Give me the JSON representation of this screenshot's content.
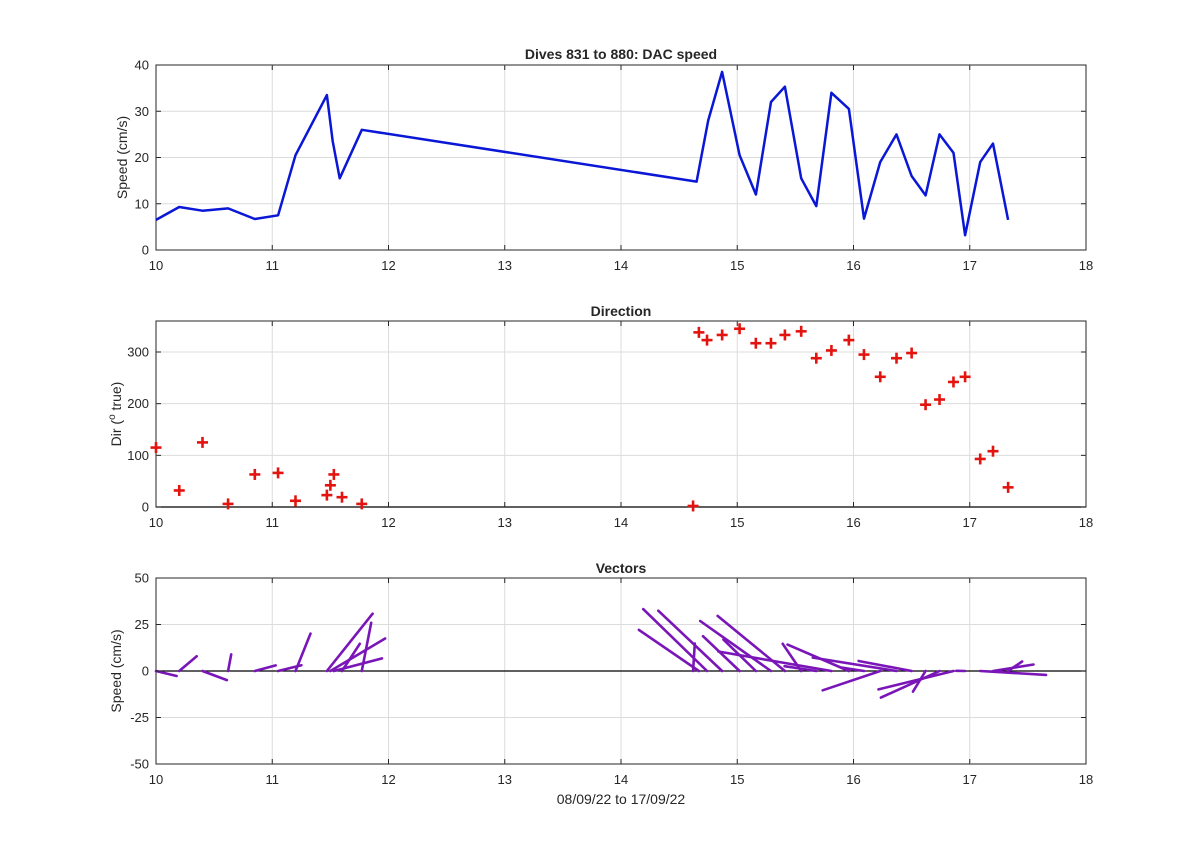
{
  "figure": {
    "xlabel": "08/09/22 to 17/09/22"
  },
  "colors": {
    "speed_line": "#0a17d6",
    "direction_marker": "#e3140f",
    "vector_line": "#7a16b8",
    "grid": "#dcdcdc",
    "axis": "#262626"
  },
  "chart_data": [
    {
      "id": "speed",
      "type": "line",
      "title": "Dives 831 to 880: DAC speed",
      "xlabel": "",
      "ylabel": "Speed (cm/s)",
      "xlim": [
        10,
        18
      ],
      "ylim": [
        0,
        40
      ],
      "xticks": [
        10,
        11,
        12,
        13,
        14,
        15,
        16,
        17,
        18
      ],
      "yticks": [
        0,
        10,
        20,
        30,
        40
      ],
      "grid": true,
      "x": [
        10.0,
        10.2,
        10.4,
        10.62,
        10.85,
        11.05,
        11.2,
        11.47,
        11.52,
        11.58,
        11.77,
        14.65,
        14.75,
        14.87,
        15.02,
        15.16,
        15.29,
        15.41,
        15.55,
        15.68,
        15.81,
        15.96,
        16.09,
        16.23,
        16.37,
        16.5,
        16.62,
        16.74,
        16.86,
        16.96,
        17.09,
        17.2,
        17.33
      ],
      "y": [
        6.5,
        9.3,
        8.5,
        9.0,
        6.7,
        7.5,
        20.5,
        33.5,
        23.5,
        15.5,
        26.0,
        14.8,
        28.0,
        38.5,
        20.5,
        12.0,
        32.0,
        35.3,
        15.5,
        9.5,
        34.0,
        30.5,
        6.8,
        19.0,
        25.0,
        16.0,
        11.8,
        25.0,
        21.0,
        3.2,
        19.0,
        23.0,
        6.5
      ]
    },
    {
      "id": "direction",
      "type": "scatter",
      "title": "Direction",
      "xlabel": "",
      "ylabel": "Dir (° true)",
      "ylabel_parts": [
        "Dir (",
        "o",
        " true)"
      ],
      "xlim": [
        10,
        18
      ],
      "ylim": [
        0,
        360
      ],
      "xticks": [
        10,
        11,
        12,
        13,
        14,
        15,
        16,
        17,
        18
      ],
      "yticks": [
        0,
        100,
        200,
        300
      ],
      "grid": true,
      "marker": "+",
      "x": [
        10.0,
        10.2,
        10.4,
        10.62,
        10.85,
        11.05,
        11.2,
        11.47,
        11.5,
        11.53,
        11.6,
        11.77,
        14.62,
        14.67,
        14.74,
        14.87,
        15.02,
        15.16,
        15.29,
        15.41,
        15.55,
        15.68,
        15.81,
        15.96,
        16.09,
        16.23,
        16.37,
        16.5,
        16.62,
        16.74,
        16.86,
        16.96,
        17.09,
        17.2,
        17.33
      ],
      "y": [
        115,
        32,
        125,
        6,
        63,
        66,
        12,
        23,
        42,
        63,
        19,
        6,
        2,
        338,
        323,
        333,
        345,
        317,
        317,
        333,
        340,
        288,
        303,
        323,
        295,
        252,
        288,
        298,
        198,
        208,
        242,
        252,
        93,
        108,
        38
      ]
    },
    {
      "id": "vectors",
      "type": "line",
      "subtype": "quiver",
      "title": "Vectors",
      "xlabel": "08/09/22 to 17/09/22",
      "ylabel": "Speed (cm/s)",
      "xlim": [
        10,
        18
      ],
      "ylim": [
        -50,
        50
      ],
      "xticks": [
        10,
        11,
        12,
        13,
        14,
        15,
        16,
        17,
        18
      ],
      "yticks": [
        -50,
        -25,
        0,
        25,
        50
      ],
      "grid": true,
      "vectors": [
        {
          "x": 10.0,
          "u": 5.9,
          "v": -2.7
        },
        {
          "x": 10.2,
          "u": 5.0,
          "v": 7.9
        },
        {
          "x": 10.4,
          "u": 7.0,
          "v": -4.9
        },
        {
          "x": 10.62,
          "u": 0.9,
          "v": 8.9
        },
        {
          "x": 10.85,
          "u": 6.0,
          "v": 3.0
        },
        {
          "x": 11.05,
          "u": 6.7,
          "v": 3.1
        },
        {
          "x": 11.2,
          "u": 4.3,
          "v": 20.1
        },
        {
          "x": 11.47,
          "u": 13.1,
          "v": 30.8
        },
        {
          "x": 11.5,
          "u": 15.7,
          "v": 17.5
        },
        {
          "x": 11.53,
          "u": 13.8,
          "v": 6.8
        },
        {
          "x": 11.6,
          "u": 5.1,
          "v": 14.6
        },
        {
          "x": 11.77,
          "u": 2.7,
          "v": 25.9
        },
        {
          "x": 14.62,
          "u": 0.5,
          "v": 14.8
        },
        {
          "x": 14.67,
          "u": -17.2,
          "v": 22.1
        },
        {
          "x": 14.74,
          "u": -18.3,
          "v": 33.3
        },
        {
          "x": 14.87,
          "u": -18.3,
          "v": 32.4
        },
        {
          "x": 15.02,
          "u": -10.5,
          "v": 18.7
        },
        {
          "x": 15.16,
          "u": -9.3,
          "v": 16.9
        },
        {
          "x": 15.29,
          "u": -20.3,
          "v": 26.9
        },
        {
          "x": 15.41,
          "u": -19.3,
          "v": 29.6
        },
        {
          "x": 15.55,
          "u": -5.3,
          "v": 14.6
        },
        {
          "x": 15.68,
          "u": -9.1,
          "v": 2.6
        },
        {
          "x": 15.81,
          "u": -32.4,
          "v": 10.5
        },
        {
          "x": 15.96,
          "u": -17.6,
          "v": 14.2
        },
        {
          "x": 16.09,
          "u": -6.5,
          "v": 1.9
        },
        {
          "x": 16.23,
          "u": -16.5,
          "v": -10.4
        },
        {
          "x": 16.37,
          "u": -24.0,
          "v": 7.2
        },
        {
          "x": 16.5,
          "u": -15.2,
          "v": 5.4
        },
        {
          "x": 16.62,
          "u": -3.6,
          "v": -11.1
        },
        {
          "x": 16.74,
          "u": -16.8,
          "v": -14.3
        },
        {
          "x": 16.86,
          "u": -21.5,
          "v": -9.9
        },
        {
          "x": 16.96,
          "u": -2.5,
          "v": 0.1
        },
        {
          "x": 17.09,
          "u": 18.9,
          "v": -2.1
        },
        {
          "x": 17.2,
          "u": 11.6,
          "v": 3.5
        },
        {
          "x": 17.33,
          "u": 4.0,
          "v": 5.1
        }
      ]
    }
  ]
}
